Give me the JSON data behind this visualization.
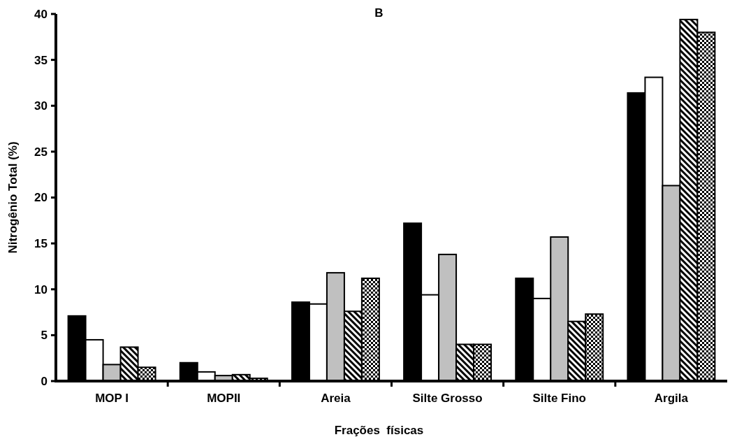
{
  "chart_data": {
    "type": "bar",
    "title": "B",
    "xlabel": "Frações  físicas",
    "ylabel": "Nitrogênio Total (%)",
    "categories": [
      "MOP I",
      "MOPII",
      "Areia",
      "Silte Grosso",
      "Silte Fino",
      "Argila"
    ],
    "series": [
      {
        "color": "#000000",
        "values": [
          7.1,
          2.0,
          8.6,
          17.2,
          11.2,
          31.4
        ]
      },
      {
        "color": "#ffffff",
        "values": [
          4.5,
          1.0,
          8.4,
          9.4,
          9.0,
          33.1
        ]
      },
      {
        "color": "#c0c0c0",
        "values": [
          1.8,
          0.6,
          11.8,
          13.8,
          15.7,
          21.3
        ]
      },
      {
        "color": "#000000",
        "values": [
          3.7,
          0.7,
          7.6,
          4.0,
          6.5,
          39.4
        ]
      },
      {
        "color": "#000000",
        "values": [
          1.5,
          0.3,
          11.2,
          4.0,
          7.3,
          38.0
        ]
      }
    ],
    "ylim": [
      0,
      40
    ],
    "yticks": [
      0,
      5,
      10,
      15,
      20,
      25,
      30,
      35,
      40
    ]
  }
}
